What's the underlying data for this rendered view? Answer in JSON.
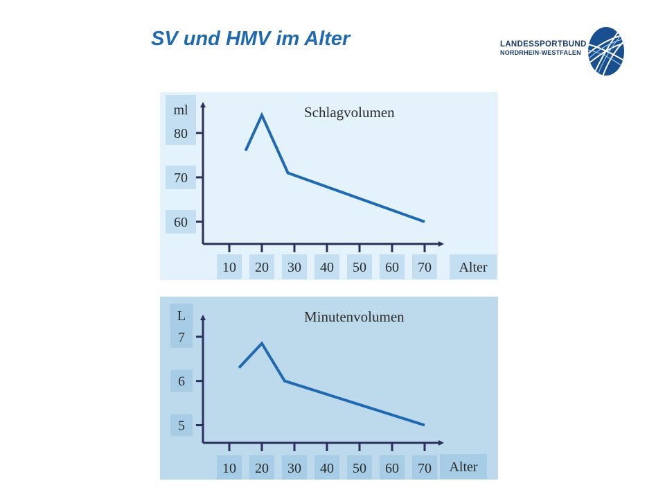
{
  "page": {
    "title": "SV und HMV im Alter",
    "logo": {
      "line1": "LANDESSPORTBUND",
      "line2": "NORDRHEIN-WESTFALEN"
    }
  },
  "colors": {
    "title": "#1f69b0",
    "line": "#1f69b0",
    "axis": "#2a2f5c",
    "top_panel_bg": "#e3f2fb",
    "bottom_panel_bg": "#bcdaeb",
    "label_box": "#c3dff1",
    "label_box_dark": "#a7cde6"
  },
  "chart_data": [
    {
      "type": "line",
      "title": "Schlagvolumen",
      "ylabel": "ml",
      "xlabel": "Alter",
      "ylim": [
        55,
        87
      ],
      "yticks": [
        "80",
        "70",
        "60"
      ],
      "ytick_values": [
        80,
        70,
        60
      ],
      "xticks": [
        "10",
        "20",
        "30",
        "40",
        "50",
        "60",
        "70"
      ],
      "xlim": [
        10,
        70
      ],
      "x": [
        15,
        20,
        28,
        70
      ],
      "values": [
        76,
        84,
        71,
        60
      ]
    },
    {
      "type": "line",
      "title": "Minutenvolumen",
      "ylabel": "L",
      "xlabel": "Alter",
      "ylim": [
        4.6,
        7.5
      ],
      "yticks": [
        "7",
        "6",
        "5"
      ],
      "ytick_values": [
        7,
        6,
        5
      ],
      "xticks": [
        "10",
        "20",
        "30",
        "40",
        "50",
        "60",
        "70"
      ],
      "xlim": [
        10,
        70
      ],
      "x": [
        13,
        20,
        27,
        70
      ],
      "values": [
        6.3,
        6.85,
        6.0,
        5.0
      ]
    }
  ]
}
